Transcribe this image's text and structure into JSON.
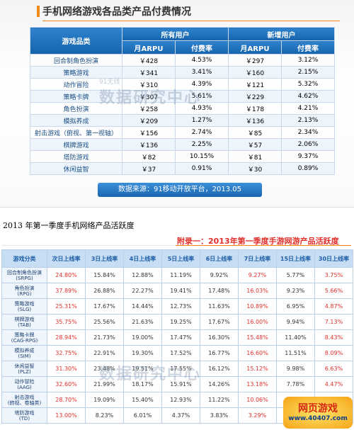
{
  "section1": {
    "title": "手机网络游戏各品类产品付费情况",
    "table": {
      "header": [
        "游戏品类",
        "所有用户",
        "新增用户"
      ],
      "subheader": [
        "月ARPU",
        "付费率",
        "月ARPU",
        "付费率"
      ],
      "rows": [
        [
          "回合制角色扮演",
          "￥428",
          "4.53%",
          "￥297",
          "3.12%"
        ],
        [
          "策略游戏",
          "￥341",
          "3.41%",
          "￥160",
          "2.15%"
        ],
        [
          "动作冒险",
          "￥310",
          "4.39%",
          "￥121",
          "5.32%"
        ],
        [
          "策略卡牌",
          "￥307",
          "5.61%",
          "￥229",
          "4.62%"
        ],
        [
          "角色扮演",
          "￥258",
          "4.93%",
          "￥178",
          "4.21%"
        ],
        [
          "模拟养成",
          "￥209",
          "1.27%",
          "￥136",
          "2.13%"
        ],
        [
          "射击游戏（俯视、第一视轴）",
          "￥156",
          "2.74%",
          "￥85",
          "2.34%"
        ],
        [
          "棋牌游戏",
          "￥136",
          "2.25%",
          "￥57",
          "2.06%"
        ],
        [
          "塔防游戏",
          "￥82",
          "10.15%",
          "￥81",
          "9.37%"
        ],
        [
          "休闲益智",
          "￥37",
          "0.91%",
          "￥30",
          "0.89%"
        ]
      ]
    },
    "source": "数据来源：91移动开放平台，2013.05",
    "watermark": [
      "91无线",
      "数据研究中心"
    ]
  },
  "caption": "2013 年第一季度手机网络产品活跃度",
  "section2": {
    "title": "附录一：2013年第一季度手游网游产品活跃度",
    "table": {
      "header": [
        "游戏分类",
        "次日上线率",
        "3日上线率",
        "4日上线率",
        "5日上线率",
        "6日上线率",
        "7日上线率",
        "15日上线率",
        "30日上线率"
      ],
      "rows": [
        [
          [
            "回合制角色扮演",
            "(SRPG)"
          ],
          "24.80%",
          "15.84%",
          "12.88%",
          "11.19%",
          "9.92%",
          "9.27%",
          "5.77%",
          "3.75%"
        ],
        [
          [
            "角色扮演",
            "(RPG)"
          ],
          "37.89%",
          "26.88%",
          "22.27%",
          "19.41%",
          "17.48%",
          "16.03%",
          "9.23%",
          "5.66%"
        ],
        [
          [
            "策略游戏",
            "(SLG)"
          ],
          "25.31%",
          "17.67%",
          "14.44%",
          "12.73%",
          "11.63%",
          "10.89%",
          "6.95%",
          "4.87%"
        ],
        [
          [
            "棋牌游戏",
            "(TAB)"
          ],
          "35.75%",
          "25.56%",
          "21.63%",
          "19.25%",
          "17.67%",
          "16.00%",
          "9.94%",
          "7.13%"
        ],
        [
          [
            "策略卡牌",
            "(CAG-RPG)"
          ],
          "28.94%",
          "21.73%",
          "19.00%",
          "17.47%",
          "16.30%",
          "15.48%",
          "11.40%",
          "8.43%"
        ],
        [
          [
            "模拟养成",
            "(SIM)"
          ],
          "32.75%",
          "22.91%",
          "19.30%",
          "17.52%",
          "16.77%",
          "16.60%",
          "11.51%",
          "8.09%"
        ],
        [
          [
            "休闲益智",
            "(PLZ)"
          ],
          "31.30%",
          "23.48%",
          "19.51%",
          "17.55%",
          "16.12%",
          "15.12%",
          "9.98%",
          "6.63%"
        ],
        [
          [
            "动作冒险",
            "(AAG)"
          ],
          "32.60%",
          "21.99%",
          "18.17%",
          "15.91%",
          "14.26%",
          "13.18%",
          "7.78%",
          "4.47%"
        ],
        [
          [
            "射击游戏",
            "(俯视、卷轴类)"
          ],
          "28.70%",
          "19.09%",
          "15.40%",
          "12.93%",
          "11.22%",
          "10.06%"
        ],
        [
          [
            "塔防游戏",
            "(TD)"
          ],
          "13.00%",
          "8.23%",
          "6.01%",
          "4.37%",
          "3.83%",
          "3.29%"
        ]
      ]
    },
    "watermark": "数据研究中心"
  },
  "logo": {
    "name": "网页游戏",
    "url": "www.40407.com"
  }
}
